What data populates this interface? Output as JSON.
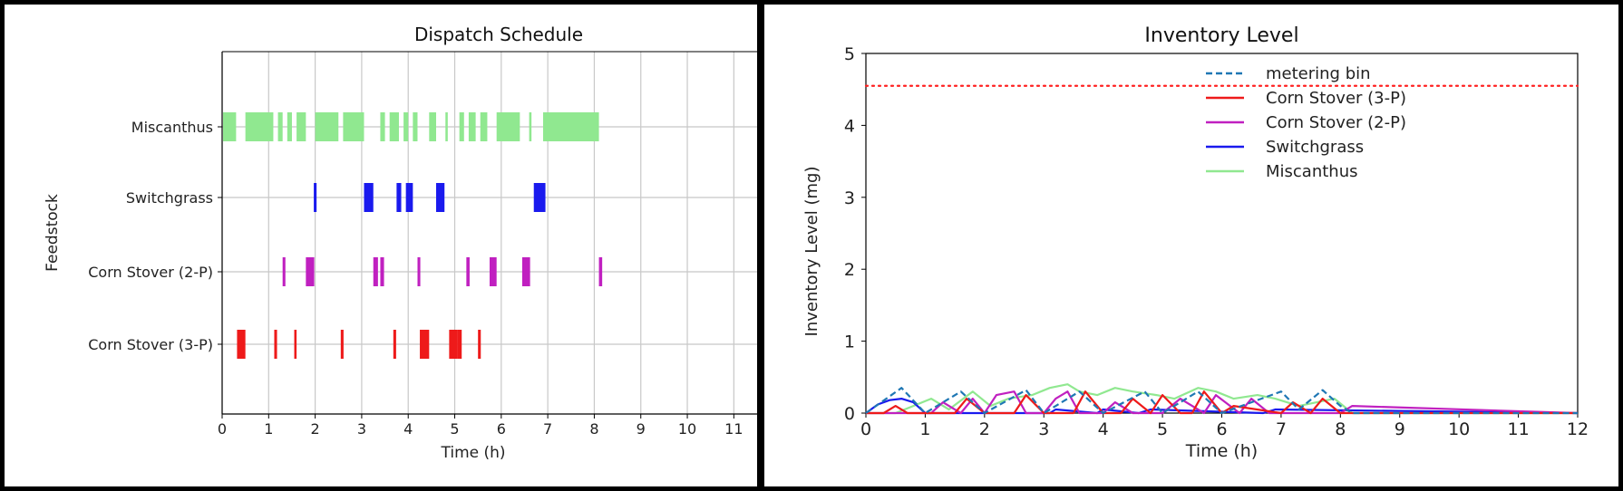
{
  "chart_data": [
    {
      "type": "gantt",
      "title": "Dispatch Schedule",
      "xlabel": "Time (h)",
      "ylabel": "Feedstock",
      "xlim": [
        0,
        11.5
      ],
      "xticks": [
        "0",
        "1",
        "2",
        "3",
        "4",
        "5",
        "6",
        "7",
        "8",
        "9",
        "10",
        "11"
      ],
      "grid": true,
      "rows": [
        {
          "name": "Miscanthus",
          "color": "#90e890",
          "intervals": [
            [
              0.02,
              0.3
            ],
            [
              0.5,
              1.1
            ],
            [
              1.2,
              1.3
            ],
            [
              1.4,
              1.5
            ],
            [
              1.6,
              1.8
            ],
            [
              2.0,
              2.5
            ],
            [
              2.6,
              3.05
            ],
            [
              3.4,
              3.5
            ],
            [
              3.6,
              3.8
            ],
            [
              3.9,
              4.0
            ],
            [
              4.1,
              4.2
            ],
            [
              4.45,
              4.6
            ],
            [
              4.8,
              4.85
            ],
            [
              5.1,
              5.2
            ],
            [
              5.3,
              5.45
            ],
            [
              5.55,
              5.7
            ],
            [
              5.9,
              6.4
            ],
            [
              6.6,
              6.65
            ],
            [
              6.9,
              8.1
            ]
          ]
        },
        {
          "name": "Switchgrass",
          "color": "#1a1aee",
          "intervals": [
            [
              1.97,
              2.03
            ],
            [
              3.05,
              3.25
            ],
            [
              3.75,
              3.85
            ],
            [
              3.95,
              4.1
            ],
            [
              4.6,
              4.78
            ],
            [
              6.7,
              6.95
            ]
          ]
        },
        {
          "name": "Corn Stover (2-P)",
          "color": "#c020c0",
          "intervals": [
            [
              1.3,
              1.36
            ],
            [
              1.8,
              1.98
            ],
            [
              3.25,
              3.35
            ],
            [
              3.4,
              3.48
            ],
            [
              4.2,
              4.26
            ],
            [
              5.25,
              5.32
            ],
            [
              5.75,
              5.9
            ],
            [
              6.45,
              6.62
            ],
            [
              8.1,
              8.17
            ]
          ]
        },
        {
          "name": "Corn Stover (3-P)",
          "color": "#ee1a1a",
          "intervals": [
            [
              0.32,
              0.5
            ],
            [
              1.12,
              1.18
            ],
            [
              1.55,
              1.6
            ],
            [
              2.55,
              2.61
            ],
            [
              3.68,
              3.74
            ],
            [
              4.25,
              4.45
            ],
            [
              4.88,
              5.05
            ],
            [
              5.05,
              5.15
            ],
            [
              5.5,
              5.56
            ]
          ]
        }
      ]
    },
    {
      "type": "line",
      "title": "Inventory Level",
      "xlabel": "Time (h)",
      "ylabel": "Inventory Level (mg)",
      "xlim": [
        0,
        12
      ],
      "ylim": [
        0,
        5
      ],
      "xticks": [
        "0",
        "1",
        "2",
        "3",
        "4",
        "5",
        "6",
        "7",
        "8",
        "9",
        "10",
        "11",
        "12"
      ],
      "yticks": [
        "0",
        "1",
        "2",
        "3",
        "4",
        "5"
      ],
      "threshold": {
        "value": 4.55,
        "color": "#ff2020",
        "style": "dotted"
      },
      "legend_position": "top-right",
      "series": [
        {
          "name": "metering bin",
          "color": "#1f77b4",
          "style": "dashed",
          "x": [
            0,
            0.6,
            1.0,
            1.6,
            2.0,
            2.7,
            3.0,
            3.6,
            4.0,
            4.7,
            5.0,
            5.6,
            6.0,
            6.5,
            7.0,
            7.3,
            7.7,
            8.0,
            8.2,
            12
          ],
          "y": [
            0,
            0.35,
            0,
            0.3,
            0,
            0.32,
            0,
            0.3,
            0,
            0.3,
            0,
            0.3,
            0,
            0.15,
            0.3,
            0.05,
            0.32,
            0.1,
            0,
            0
          ]
        },
        {
          "name": "Corn Stover (3-P)",
          "color": "#ee1a1a",
          "style": "solid",
          "x": [
            0,
            0.3,
            0.5,
            0.7,
            1.0,
            1.5,
            1.7,
            2.0,
            2.5,
            2.7,
            3.0,
            3.5,
            3.7,
            4.0,
            4.3,
            4.5,
            4.8,
            5.0,
            5.3,
            5.5,
            5.7,
            6.0,
            6.2,
            7.0,
            7.2,
            7.5,
            7.7,
            8.0,
            12
          ],
          "y": [
            0,
            0,
            0.1,
            0,
            0,
            0,
            0.2,
            0,
            0,
            0.25,
            0,
            0,
            0.3,
            0,
            0,
            0.2,
            0,
            0.25,
            0,
            0,
            0.3,
            0,
            0.1,
            0,
            0.15,
            0,
            0.2,
            0,
            0
          ]
        },
        {
          "name": "Corn Stover (2-P)",
          "color": "#c020c0",
          "style": "solid",
          "x": [
            0,
            1.1,
            1.3,
            1.6,
            1.8,
            2.0,
            2.2,
            2.5,
            2.7,
            3.0,
            3.2,
            3.4,
            3.6,
            4.0,
            4.2,
            4.5,
            5.0,
            5.3,
            5.7,
            5.9,
            6.3,
            6.5,
            6.8,
            8.0,
            8.2,
            12
          ],
          "y": [
            0,
            0,
            0.15,
            0,
            0.2,
            0,
            0.25,
            0.3,
            0,
            0,
            0.2,
            0.3,
            0,
            0,
            0.15,
            0,
            0,
            0.2,
            0,
            0.25,
            0,
            0.2,
            0,
            0,
            0.1,
            0
          ]
        },
        {
          "name": "Switchgrass",
          "color": "#1a1aee",
          "style": "solid",
          "x": [
            0,
            0.2,
            0.4,
            0.6,
            0.8,
            1.0,
            2.0,
            3.1,
            3.2,
            3.9,
            4.0,
            4.6,
            4.8,
            6.7,
            6.9,
            12
          ],
          "y": [
            0,
            0.12,
            0.18,
            0.2,
            0.15,
            0,
            0,
            0,
            0.05,
            0,
            0.05,
            0,
            0.05,
            0,
            0.05,
            0
          ]
        },
        {
          "name": "Miscanthus",
          "color": "#90e890",
          "style": "solid",
          "x": [
            0,
            0.5,
            0.8,
            1.1,
            1.4,
            1.8,
            2.1,
            2.4,
            2.8,
            3.1,
            3.4,
            3.6,
            3.9,
            4.2,
            4.5,
            4.9,
            5.2,
            5.6,
            5.9,
            6.2,
            6.6,
            6.9,
            7.3,
            7.6,
            7.9,
            8.2,
            12
          ],
          "y": [
            0,
            0,
            0.1,
            0.2,
            0.05,
            0.3,
            0.1,
            0.2,
            0.25,
            0.35,
            0.4,
            0.3,
            0.25,
            0.35,
            0.3,
            0.25,
            0.2,
            0.35,
            0.3,
            0.2,
            0.25,
            0.2,
            0.1,
            0.15,
            0.2,
            0,
            0
          ]
        }
      ]
    }
  ]
}
